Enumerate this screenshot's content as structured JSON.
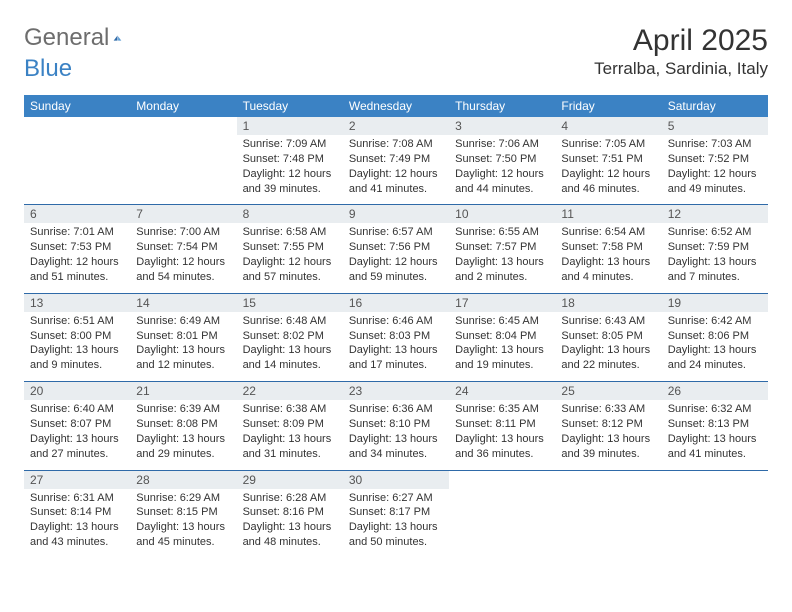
{
  "logo": {
    "text1": "General",
    "text2": "Blue"
  },
  "title": "April 2025",
  "subtitle": "Terralba, Sardinia, Italy",
  "colors": {
    "header_bg": "#3b82c4",
    "header_text": "#ffffff",
    "daynum_bg": "#e9edf0",
    "rule": "#2f6aa8",
    "text": "#333333"
  },
  "days_of_week": [
    "Sunday",
    "Monday",
    "Tuesday",
    "Wednesday",
    "Thursday",
    "Friday",
    "Saturday"
  ],
  "weeks": [
    {
      "nums": [
        "",
        "",
        "1",
        "2",
        "3",
        "4",
        "5"
      ],
      "cells": [
        null,
        null,
        {
          "sunrise": "7:09 AM",
          "sunset": "7:48 PM",
          "daylight": "12 hours and 39 minutes."
        },
        {
          "sunrise": "7:08 AM",
          "sunset": "7:49 PM",
          "daylight": "12 hours and 41 minutes."
        },
        {
          "sunrise": "7:06 AM",
          "sunset": "7:50 PM",
          "daylight": "12 hours and 44 minutes."
        },
        {
          "sunrise": "7:05 AM",
          "sunset": "7:51 PM",
          "daylight": "12 hours and 46 minutes."
        },
        {
          "sunrise": "7:03 AM",
          "sunset": "7:52 PM",
          "daylight": "12 hours and 49 minutes."
        }
      ]
    },
    {
      "nums": [
        "6",
        "7",
        "8",
        "9",
        "10",
        "11",
        "12"
      ],
      "cells": [
        {
          "sunrise": "7:01 AM",
          "sunset": "7:53 PM",
          "daylight": "12 hours and 51 minutes."
        },
        {
          "sunrise": "7:00 AM",
          "sunset": "7:54 PM",
          "daylight": "12 hours and 54 minutes."
        },
        {
          "sunrise": "6:58 AM",
          "sunset": "7:55 PM",
          "daylight": "12 hours and 57 minutes."
        },
        {
          "sunrise": "6:57 AM",
          "sunset": "7:56 PM",
          "daylight": "12 hours and 59 minutes."
        },
        {
          "sunrise": "6:55 AM",
          "sunset": "7:57 PM",
          "daylight": "13 hours and 2 minutes."
        },
        {
          "sunrise": "6:54 AM",
          "sunset": "7:58 PM",
          "daylight": "13 hours and 4 minutes."
        },
        {
          "sunrise": "6:52 AM",
          "sunset": "7:59 PM",
          "daylight": "13 hours and 7 minutes."
        }
      ]
    },
    {
      "nums": [
        "13",
        "14",
        "15",
        "16",
        "17",
        "18",
        "19"
      ],
      "cells": [
        {
          "sunrise": "6:51 AM",
          "sunset": "8:00 PM",
          "daylight": "13 hours and 9 minutes."
        },
        {
          "sunrise": "6:49 AM",
          "sunset": "8:01 PM",
          "daylight": "13 hours and 12 minutes."
        },
        {
          "sunrise": "6:48 AM",
          "sunset": "8:02 PM",
          "daylight": "13 hours and 14 minutes."
        },
        {
          "sunrise": "6:46 AM",
          "sunset": "8:03 PM",
          "daylight": "13 hours and 17 minutes."
        },
        {
          "sunrise": "6:45 AM",
          "sunset": "8:04 PM",
          "daylight": "13 hours and 19 minutes."
        },
        {
          "sunrise": "6:43 AM",
          "sunset": "8:05 PM",
          "daylight": "13 hours and 22 minutes."
        },
        {
          "sunrise": "6:42 AM",
          "sunset": "8:06 PM",
          "daylight": "13 hours and 24 minutes."
        }
      ]
    },
    {
      "nums": [
        "20",
        "21",
        "22",
        "23",
        "24",
        "25",
        "26"
      ],
      "cells": [
        {
          "sunrise": "6:40 AM",
          "sunset": "8:07 PM",
          "daylight": "13 hours and 27 minutes."
        },
        {
          "sunrise": "6:39 AM",
          "sunset": "8:08 PM",
          "daylight": "13 hours and 29 minutes."
        },
        {
          "sunrise": "6:38 AM",
          "sunset": "8:09 PM",
          "daylight": "13 hours and 31 minutes."
        },
        {
          "sunrise": "6:36 AM",
          "sunset": "8:10 PM",
          "daylight": "13 hours and 34 minutes."
        },
        {
          "sunrise": "6:35 AM",
          "sunset": "8:11 PM",
          "daylight": "13 hours and 36 minutes."
        },
        {
          "sunrise": "6:33 AM",
          "sunset": "8:12 PM",
          "daylight": "13 hours and 39 minutes."
        },
        {
          "sunrise": "6:32 AM",
          "sunset": "8:13 PM",
          "daylight": "13 hours and 41 minutes."
        }
      ]
    },
    {
      "nums": [
        "27",
        "28",
        "29",
        "30",
        "",
        "",
        ""
      ],
      "cells": [
        {
          "sunrise": "6:31 AM",
          "sunset": "8:14 PM",
          "daylight": "13 hours and 43 minutes."
        },
        {
          "sunrise": "6:29 AM",
          "sunset": "8:15 PM",
          "daylight": "13 hours and 45 minutes."
        },
        {
          "sunrise": "6:28 AM",
          "sunset": "8:16 PM",
          "daylight": "13 hours and 48 minutes."
        },
        {
          "sunrise": "6:27 AM",
          "sunset": "8:17 PM",
          "daylight": "13 hours and 50 minutes."
        },
        null,
        null,
        null
      ]
    }
  ]
}
